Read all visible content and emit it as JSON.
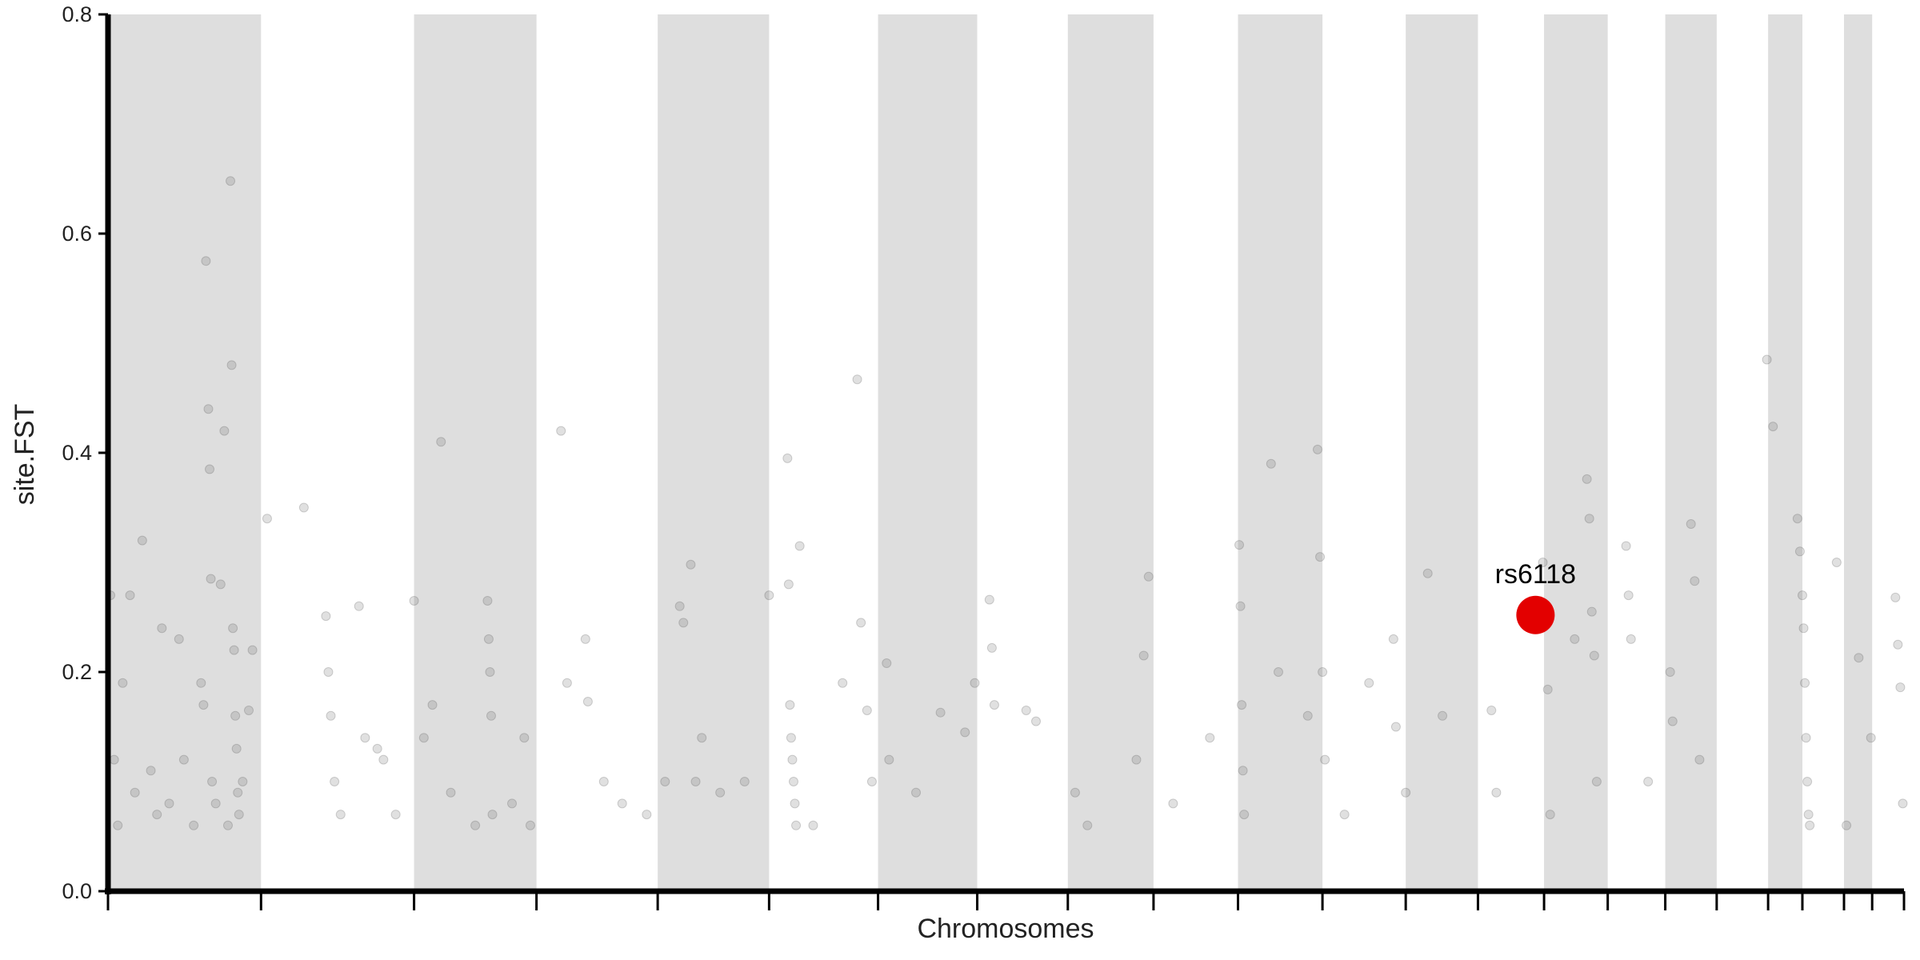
{
  "chart_data": {
    "type": "scatter",
    "xlabel": "Chromosomes",
    "ylabel": "site.FST",
    "xlim": [
      0,
      1467
    ],
    "ylim": [
      0,
      0.8
    ],
    "yticks": [
      {
        "value": 0,
        "label": "0.0"
      },
      0.2,
      0.4,
      0.6,
      0.8
    ],
    "xticks": [
      0,
      125,
      250,
      350,
      449,
      540,
      629,
      710,
      784,
      854,
      923,
      992,
      1060,
      1119,
      1173,
      1225,
      1272,
      1314,
      1356,
      1384,
      1418,
      1441,
      1467
    ],
    "bands": [
      [
        0,
        125
      ],
      [
        250,
        350
      ],
      [
        449,
        540
      ],
      [
        629,
        710
      ],
      [
        784,
        854
      ],
      [
        923,
        992
      ],
      [
        1060,
        1119
      ],
      [
        1173,
        1225
      ],
      [
        1272,
        1314
      ],
      [
        1356,
        1384
      ],
      [
        1418,
        1441
      ]
    ],
    "band_color": "#dedede",
    "series": [
      {
        "color": "#555555",
        "x": [
          2,
          5,
          8,
          12,
          18,
          22,
          28,
          35,
          40,
          44,
          50,
          58,
          62,
          70,
          76,
          78,
          80,
          82,
          83,
          84,
          85,
          88,
          92,
          95,
          98,
          100,
          101,
          102,
          103,
          104,
          105,
          106,
          107,
          110,
          115,
          118,
          130,
          160,
          178,
          180,
          182,
          185,
          190,
          205,
          210,
          220,
          225,
          235,
          250,
          258,
          265,
          272,
          280,
          300,
          310,
          311,
          312,
          313,
          314,
          330,
          340,
          345,
          370,
          375,
          390,
          392,
          405,
          420,
          440,
          455,
          467,
          470,
          476,
          480,
          485,
          500,
          520,
          540,
          555,
          556,
          557,
          558,
          559,
          560,
          561,
          562,
          565,
          576,
          600,
          612,
          615,
          620,
          624,
          636,
          638,
          660,
          680,
          700,
          708,
          720,
          722,
          724,
          750,
          758,
          790,
          800,
          850,
          846,
          840,
          870,
          900,
          924,
          925,
          926,
          927,
          928,
          950,
          956,
          980,
          988,
          990,
          992,
          994,
          1010,
          1030,
          1050,
          1052,
          1060,
          1078,
          1090,
          1130,
          1134,
          1172,
          1176,
          1178,
          1198,
          1208,
          1210,
          1212,
          1214,
          1216,
          1240,
          1242,
          1244,
          1258,
          1276,
          1278,
          1293,
          1296,
          1300,
          1355,
          1360,
          1380,
          1382,
          1384,
          1385,
          1386,
          1387,
          1388,
          1389,
          1390,
          1412,
          1430,
          1440,
          1460,
          1462,
          1464,
          1466,
          1420
        ],
        "values": [
          0.27,
          0.12,
          0.06,
          0.19,
          0.27,
          0.09,
          0.32,
          0.11,
          0.07,
          0.24,
          0.08,
          0.23,
          0.12,
          0.06,
          0.19,
          0.17,
          0.575,
          0.44,
          0.385,
          0.285,
          0.1,
          0.08,
          0.28,
          0.42,
          0.06,
          0.648,
          0.48,
          0.24,
          0.22,
          0.16,
          0.13,
          0.09,
          0.07,
          0.1,
          0.165,
          0.22,
          0.34,
          0.35,
          0.251,
          0.2,
          0.16,
          0.1,
          0.07,
          0.26,
          0.14,
          0.13,
          0.12,
          0.07,
          0.265,
          0.14,
          0.17,
          0.41,
          0.09,
          0.06,
          0.265,
          0.23,
          0.2,
          0.16,
          0.07,
          0.08,
          0.14,
          0.06,
          0.42,
          0.19,
          0.23,
          0.173,
          0.1,
          0.08,
          0.07,
          0.1,
          0.26,
          0.245,
          0.298,
          0.1,
          0.14,
          0.09,
          0.1,
          0.27,
          0.395,
          0.28,
          0.17,
          0.14,
          0.12,
          0.1,
          0.08,
          0.06,
          0.315,
          0.06,
          0.19,
          0.467,
          0.245,
          0.165,
          0.1,
          0.208,
          0.12,
          0.09,
          0.163,
          0.145,
          0.19,
          0.266,
          0.222,
          0.17,
          0.165,
          0.155,
          0.09,
          0.06,
          0.287,
          0.215,
          0.12,
          0.08,
          0.14,
          0.316,
          0.26,
          0.17,
          0.11,
          0.07,
          0.39,
          0.2,
          0.16,
          0.403,
          0.305,
          0.2,
          0.12,
          0.07,
          0.19,
          0.23,
          0.15,
          0.09,
          0.29,
          0.16,
          0.165,
          0.09,
          0.3,
          0.184,
          0.07,
          0.23,
          0.376,
          0.34,
          0.255,
          0.215,
          0.1,
          0.315,
          0.27,
          0.23,
          0.1,
          0.2,
          0.155,
          0.335,
          0.283,
          0.12,
          0.485,
          0.424,
          0.34,
          0.31,
          0.27,
          0.24,
          0.19,
          0.14,
          0.1,
          0.07,
          0.06,
          0.3,
          0.213,
          0.14,
          0.268,
          0.225,
          0.186,
          0.08,
          0.06
        ]
      }
    ],
    "annotation": {
      "text": "rs6118",
      "x": 1166,
      "y": 0.252,
      "color": "#e30000"
    }
  }
}
